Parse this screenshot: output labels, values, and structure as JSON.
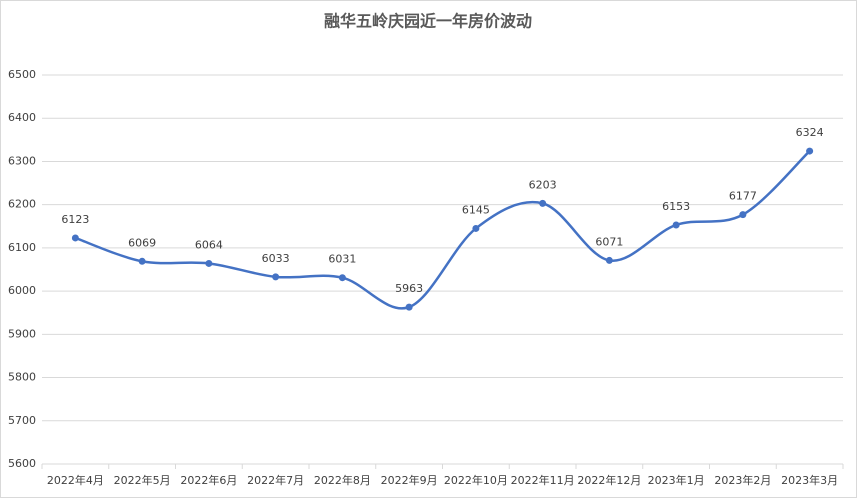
{
  "chart_data": {
    "type": "line",
    "title": "融华五岭庆园近一年房价波动",
    "categories": [
      "2022年4月",
      "2022年5月",
      "2022年6月",
      "2022年7月",
      "2022年8月",
      "2022年9月",
      "2022年10月",
      "2022年11月",
      "2022年12月",
      "2023年1月",
      "2023年2月",
      "2023年3月"
    ],
    "values": [
      6123,
      6069,
      6064,
      6033,
      6031,
      5963,
      6145,
      6203,
      6071,
      6153,
      6177,
      6324
    ],
    "color": "#4472c4",
    "smooth": true,
    "ylim": [
      5600,
      6500
    ],
    "yticks": [
      5600,
      5700,
      5800,
      5900,
      6000,
      6100,
      6200,
      6300,
      6400,
      6500
    ],
    "grid": true
  }
}
